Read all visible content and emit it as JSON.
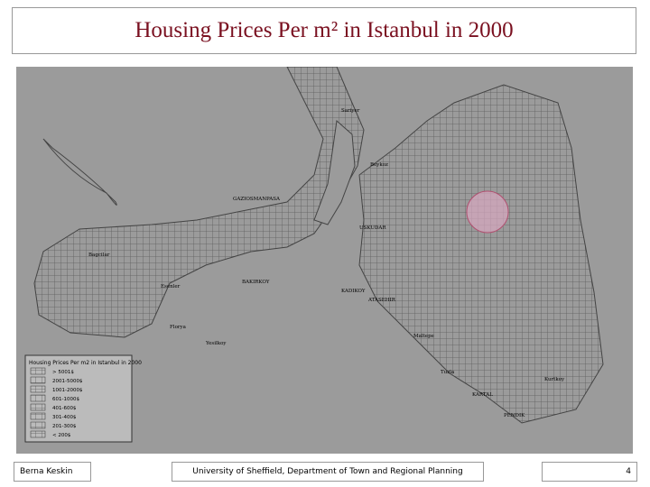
{
  "header": {
    "title": "Housing Prices Per m² in Istanbul in 2000"
  },
  "map": {
    "labels": [
      "GAZIOSMANPASA",
      "Sariyer",
      "Beykoz",
      "Bagcilar",
      "Esenler",
      "BAKIRKOY",
      "Florya",
      "Yesilkoy",
      "USKUDAR",
      "KADIKOY",
      "ATASEHIR",
      "Maltepe",
      "KARTAL",
      "PENDIK",
      "Tuzla",
      "Kurtkoy"
    ],
    "legend": {
      "title": "Housing Prices Per m2 in Istanbul in 2000",
      "entries": [
        "> 5001$",
        "2001-5000$",
        "1001-2000$",
        "601-1000$",
        "401-600$",
        "301-400$",
        "201-300$",
        "< 200$"
      ]
    }
  },
  "footer": {
    "author": "Berna Keskin",
    "institution": "University of Sheffield, Department of Town and Regional Planning",
    "page": "4"
  }
}
